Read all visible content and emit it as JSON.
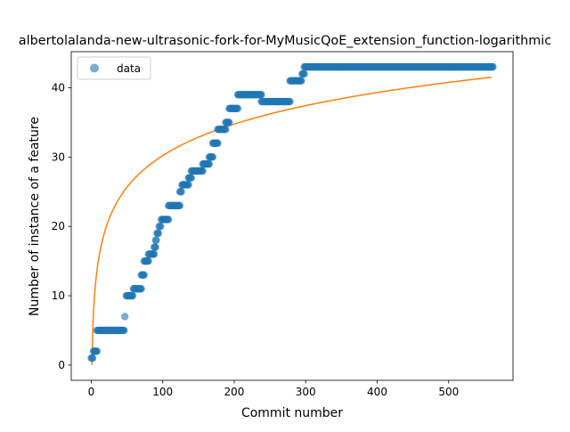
{
  "chart_data": {
    "type": "scatter",
    "title": "albertolalanda-new-ultrasonic-fork-for-MyMusicQoE_extension_function-logarithmic",
    "xlabel": "Commit number",
    "ylabel": "Number of instance of a feature",
    "xlim": [
      -28,
      590
    ],
    "ylim": [
      -2.2,
      45.2
    ],
    "xticks": [
      0,
      100,
      200,
      300,
      400,
      500
    ],
    "yticks": [
      0,
      10,
      20,
      30,
      40
    ],
    "grid": false,
    "legend": {
      "placement": "top-left",
      "entries": [
        "data"
      ]
    },
    "colors": {
      "data": "#1f77b4",
      "fit": "#ff7f0e"
    },
    "data_steps": [
      {
        "x_start": 0,
        "x_end": 2,
        "y": 1
      },
      {
        "x_start": 3,
        "x_end": 8,
        "y": 2
      },
      {
        "x_start": 8,
        "x_end": 46,
        "y": 5
      },
      {
        "x_start": 47,
        "x_end": 47,
        "y": 7
      },
      {
        "x_start": 49,
        "x_end": 58,
        "y": 10
      },
      {
        "x_start": 59,
        "x_end": 70,
        "y": 11
      },
      {
        "x_start": 70,
        "x_end": 74,
        "y": 13
      },
      {
        "x_start": 74,
        "x_end": 80,
        "y": 15
      },
      {
        "x_start": 80,
        "x_end": 88,
        "y": 16
      },
      {
        "x_start": 88,
        "x_end": 90,
        "y": 17
      },
      {
        "x_start": 90,
        "x_end": 91,
        "y": 18
      },
      {
        "x_start": 92,
        "x_end": 94,
        "y": 19
      },
      {
        "x_start": 95,
        "x_end": 97,
        "y": 20
      },
      {
        "x_start": 98,
        "x_end": 108,
        "y": 21
      },
      {
        "x_start": 108,
        "x_end": 124,
        "y": 23
      },
      {
        "x_start": 124,
        "x_end": 126,
        "y": 25
      },
      {
        "x_start": 127,
        "x_end": 136,
        "y": 26
      },
      {
        "x_start": 136,
        "x_end": 140,
        "y": 27
      },
      {
        "x_start": 140,
        "x_end": 156,
        "y": 28
      },
      {
        "x_start": 156,
        "x_end": 165,
        "y": 29
      },
      {
        "x_start": 165,
        "x_end": 170,
        "y": 30
      },
      {
        "x_start": 170,
        "x_end": 177,
        "y": 32
      },
      {
        "x_start": 177,
        "x_end": 188,
        "y": 34
      },
      {
        "x_start": 188,
        "x_end": 193,
        "y": 35
      },
      {
        "x_start": 193,
        "x_end": 205,
        "y": 37
      },
      {
        "x_start": 205,
        "x_end": 238,
        "y": 39
      },
      {
        "x_start": 238,
        "x_end": 278,
        "y": 38
      },
      {
        "x_start": 278,
        "x_end": 294,
        "y": 41
      },
      {
        "x_start": 295,
        "x_end": 298,
        "y": 42
      },
      {
        "x_start": 298,
        "x_end": 562,
        "y": 43
      }
    ],
    "fit": {
      "model": "logarithmic",
      "equation": "y = 6.56 * ln(x)",
      "a": 6.56,
      "x_range": [
        1,
        561
      ]
    }
  }
}
